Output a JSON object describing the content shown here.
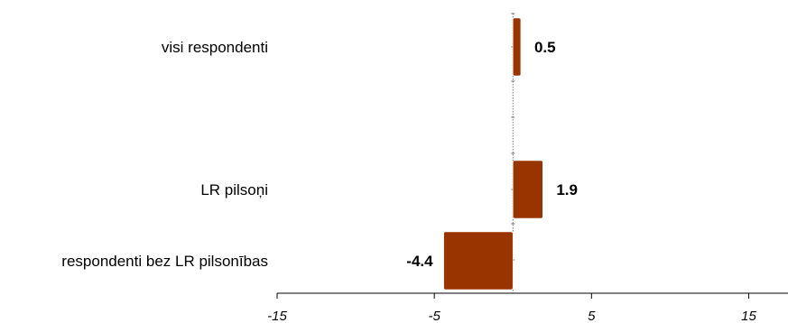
{
  "chart_data": {
    "type": "bar",
    "orientation": "horizontal",
    "categories": [
      "visi respondenti",
      "LR pilsoņi",
      "respondenti bez LR pilsonības"
    ],
    "values": [
      0.5,
      1.9,
      -4.4
    ],
    "data_labels": [
      "0.5",
      "1.9",
      "-4.4"
    ],
    "x_ticks": [
      -15,
      -5,
      5,
      15
    ],
    "x_tick_labels": [
      "-15",
      "-5",
      "5",
      "15"
    ],
    "xlim": [
      -15,
      17.5
    ],
    "title": "",
    "xlabel": "",
    "ylabel": "",
    "grid": false,
    "legend": "none",
    "bar_color": "#993300"
  }
}
